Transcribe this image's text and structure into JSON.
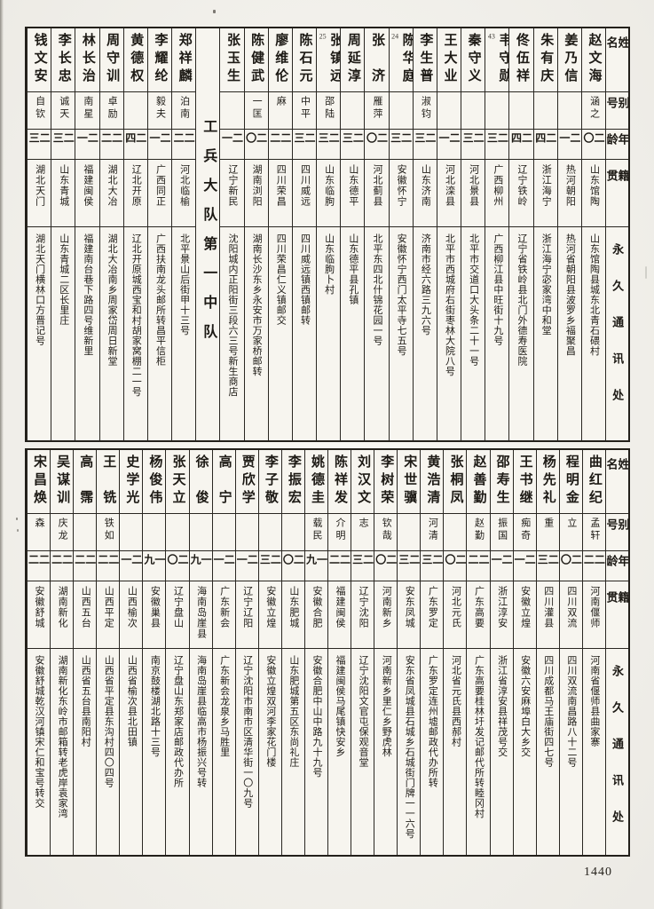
{
  "page": {
    "number": "1440"
  },
  "labels": {
    "name": "姓名",
    "alias": "别号",
    "age": "年龄",
    "native": "籍贯",
    "address": "永久通讯处"
  },
  "top_table": {
    "unit_title": "工兵大队第一中队",
    "persons_left": [
      {
        "name": "钱文安",
        "note": "",
        "alias": "自钦",
        "age": "二三",
        "native": "湖北天门",
        "address": "湖北天门横林口方晋记号"
      },
      {
        "name": "李长忠",
        "note": "",
        "alias": "诚天",
        "age": "二三",
        "native": "山东青城",
        "address": "山东青城二区长里庄"
      },
      {
        "name": "林长治",
        "note": "",
        "alias": "南星",
        "age": "二一",
        "native": "福建闽侯",
        "address": "福建南台巷下路四号维新里"
      },
      {
        "name": "周守训",
        "note": "",
        "alias": "卓励",
        "age": "二二",
        "native": "湖北大冶",
        "address": "湖北大冶南乡周家岱周日新堂"
      },
      {
        "name": "黄德权",
        "note": "",
        "alias": "",
        "age": "二四",
        "native": "辽北开原",
        "address": "辽北开原城西宝和村胡家窝棚二一号"
      },
      {
        "name": "李耀纶",
        "note": "",
        "alias": "毅夫",
        "age": "二一",
        "native": "广西同正",
        "address": "广西扶南龙头邮所转昌平信柜"
      },
      {
        "name": "郑祥麟",
        "note": "",
        "alias": "泊南",
        "age": "二二",
        "native": "河北临榆",
        "address": "北平景山后街甲十三号"
      }
    ],
    "persons_right": [
      {
        "name": "张玉生",
        "note": "",
        "alias": "",
        "age": "二一",
        "native": "辽宁新民",
        "address": "沈阳城内正阳街三段六三号新生商店"
      },
      {
        "name": "陈健武",
        "note": "",
        "alias": "一匡",
        "age": "二〇",
        "native": "湖南浏阳",
        "address": "湖南长沙东乡永安市万家桥邮转"
      },
      {
        "name": "廖维伦",
        "note": "",
        "alias": "麻",
        "age": "二二",
        "native": "四川荣昌",
        "address": "四川荣昌仁义镇邮交"
      },
      {
        "name": "陈石元",
        "note": "",
        "alias": "中平",
        "age": "二三",
        "native": "四川威远",
        "address": "四川威远镇西镇邮转"
      },
      {
        "name": "张镇远",
        "note": "25",
        "alias": "邵陆",
        "age": "二三",
        "native": "山东临朐",
        "address": "山东临朐卜村"
      },
      {
        "name": "周延淳",
        "note": "",
        "alias": "",
        "age": "二三",
        "native": "山东德平",
        "address": "山东德平县孔镇"
      },
      {
        "name": "张　济",
        "note": "",
        "alias": "雁萍",
        "age": "二〇",
        "native": "河北蓟县",
        "address": "北平东四北什锦花园一号"
      },
      {
        "name": "陈华庭",
        "note": "24",
        "alias": "",
        "age": "二三",
        "native": "安徽怀宁",
        "address": "安徽怀宁西门太平寺七五号"
      },
      {
        "name": "李生普",
        "note": "",
        "alias": "淑钧",
        "age": "二三",
        "native": "山东济南",
        "address": "济南市经六路三九六号"
      },
      {
        "name": "王大业",
        "note": "",
        "alias": "",
        "age": "二一",
        "native": "河北滦县",
        "address": "北平市西城府右街枣林大院八号"
      },
      {
        "name": "秦守义",
        "note": "",
        "alias": "",
        "age": "二三",
        "native": "河北景县",
        "address": "北平市交道口大头条二十一号"
      },
      {
        "name": "韦守勋",
        "note": "43",
        "alias": "",
        "age": "二三",
        "native": "广西柳州",
        "address": "广西柳江县中旺街十九号"
      },
      {
        "name": "佟伍祥",
        "note": "",
        "alias": "",
        "age": "二四",
        "native": "辽宁铁岭",
        "address": "辽宁省铁岭县北门外德寿医院"
      },
      {
        "name": "朱有庆",
        "note": "",
        "alias": "",
        "age": "二四",
        "native": "浙江海宁",
        "address": "浙江海宁宓家湾中和堂"
      },
      {
        "name": "姜乃信",
        "note": "",
        "alias": "",
        "age": "二一",
        "native": "热河朝阳",
        "address": "热河省朝阳县波罗乡福聚昌"
      },
      {
        "name": "赵文海",
        "note": "",
        "alias": "涵之",
        "age": "二〇",
        "native": "山东馆陶",
        "address": "山东馆陶县城东北青石碨村"
      }
    ]
  },
  "bottom_table": {
    "persons": [
      {
        "name": "宋昌焕",
        "note": "",
        "alias": "森",
        "age": "二二",
        "native": "安徽舒城",
        "address": "安徽舒城乾汉河镇宋仁和宝号转交"
      },
      {
        "name": "吴谋训",
        "note": "",
        "alias": "庆龙",
        "age": "二二",
        "native": "湖南新化",
        "address": "湖南新化东岭市邮箱转老虎岸袁家湾"
      },
      {
        "name": "高　霈",
        "note": "",
        "alias": "",
        "age": "二二",
        "native": "山西五台",
        "address": "山西省五台县南阳村"
      },
      {
        "name": "王　铣",
        "note": "",
        "alias": "铁如",
        "age": "二二",
        "native": "山西平定",
        "address": "山西省平定县东沟村四〇四号"
      },
      {
        "name": "史学光",
        "note": "",
        "alias": "",
        "age": "二一",
        "native": "山西榆次",
        "address": "山西省榆次县北田镇"
      },
      {
        "name": "杨俊伟",
        "note": "",
        "alias": "",
        "age": "一九",
        "native": "安徽巢县",
        "address": "南京鼓楼湖北路十三号"
      },
      {
        "name": "张天立",
        "note": "",
        "alias": "",
        "age": "二〇",
        "native": "辽宁盘山",
        "address": "辽宁盘山东郑家店邮政代办所"
      },
      {
        "name": "徐　俊",
        "note": "",
        "alias": "",
        "age": "一九",
        "native": "海南岛崖县",
        "address": "海南岛崖县临高市杨振兴号转"
      },
      {
        "name": "高　宁",
        "note": "",
        "alias": "",
        "age": "二一",
        "native": "广东新会",
        "address": "广东新会龙泉乡马胜里"
      },
      {
        "name": "贾欣学",
        "note": "",
        "alias": "",
        "age": "二一",
        "native": "辽宁辽阳",
        "address": "辽宁沈阳市南市区清华街一〇九号"
      },
      {
        "name": "李子敬",
        "note": "",
        "alias": "",
        "age": "二三",
        "native": "安徽立煌",
        "address": "安徽立煌双河李家花门楼"
      },
      {
        "name": "李振宏",
        "note": "",
        "alias": "",
        "age": "二〇",
        "native": "山东肥城",
        "address": "山东肥城第五区东尚礼庄"
      },
      {
        "name": "姚德圭",
        "note": "",
        "alias": "载民",
        "age": "一九",
        "native": "安徽合肥",
        "address": "安徽合肥中山中路九十九号"
      },
      {
        "name": "陈祥发",
        "note": "",
        "alias": "介明",
        "age": "二二",
        "native": "福建闽侯",
        "address": "福建闽侯马尾镇快安乡"
      },
      {
        "name": "刘汉文",
        "note": "",
        "alias": "志",
        "age": "二三",
        "native": "辽宁沈阳",
        "address": "辽宁沈阳文官屯保观音堂"
      },
      {
        "name": "李树荣",
        "note": "",
        "alias": "钦哉",
        "age": "二〇",
        "native": "河南新乡",
        "address": "河南新乡里仁乡野虎林"
      },
      {
        "name": "宋世骥",
        "note": "",
        "alias": "",
        "age": "二三",
        "native": "安东凤城",
        "address": "安东省凤城县石城乡石城街门牌一一六号"
      },
      {
        "name": "黄浩清",
        "note": "",
        "alias": "河清",
        "age": "二三",
        "native": "广东罗定",
        "address": "广东罗定连州墟邮政代办所转"
      },
      {
        "name": "张桐凤",
        "note": "",
        "alias": "",
        "age": "二〇",
        "native": "河北元氏",
        "address": "河北省元氏县西郝村"
      },
      {
        "name": "赵善勤",
        "note": "",
        "alias": "赵勤",
        "age": "二二",
        "native": "广东高要",
        "address": "广东高要桂林圩发记邮代所转睦冈村"
      },
      {
        "name": "邵寿生",
        "note": "",
        "alias": "振国",
        "age": "二一",
        "native": "浙江淳安",
        "address": "浙江省淳安县祥茂号交"
      },
      {
        "name": "王书继",
        "note": "",
        "alias": "痴奇",
        "age": "二一",
        "native": "安徽立煌",
        "address": "安徽六安麻埠白大乡交"
      },
      {
        "name": "杨先礼",
        "note": "",
        "alias": "重",
        "age": "二三",
        "native": "四川灌县",
        "address": "四川成都马王庙街四七号"
      },
      {
        "name": "程明金",
        "note": "",
        "alias": "立",
        "age": "二〇",
        "native": "四川双流",
        "address": "四川双流南昌路八十二号"
      },
      {
        "name": "曲红纪",
        "note": "",
        "alias": "孟轩",
        "age": "二二",
        "native": "河南偃师",
        "address": "河南省偃师县曲家寨"
      }
    ]
  }
}
